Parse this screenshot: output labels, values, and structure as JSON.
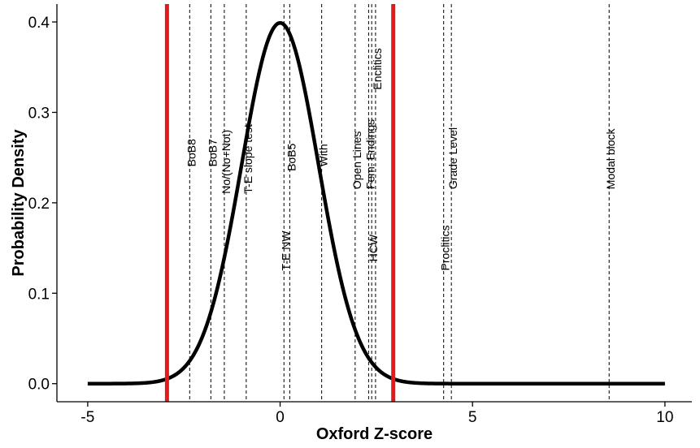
{
  "chart_data": {
    "type": "line",
    "xlabel": "Oxford Z-score",
    "ylabel": "Probability Density",
    "xlim": [
      -5,
      10
    ],
    "ylim": [
      0,
      0.4
    ],
    "x_ticks": [
      -5,
      0,
      5,
      10
    ],
    "x_tick_labels": [
      "-5",
      "0",
      "5",
      "10"
    ],
    "y_ticks": [
      0.0,
      0.1,
      0.2,
      0.3,
      0.4
    ],
    "y_tick_labels": [
      "0.0",
      "0.1",
      "0.2",
      "0.3",
      "0.4"
    ],
    "grid": false,
    "series": [
      {
        "distribution": "standard normal density",
        "mean": 0,
        "sd": 1,
        "x_range": [
          -5,
          10
        ],
        "color": "#000000"
      }
    ],
    "thresholds": [
      {
        "x": -2.94,
        "color": "#e31a1c"
      },
      {
        "x": 2.94,
        "color": "#e31a1c"
      }
    ],
    "reference_lines": [
      {
        "label": "BoB8",
        "x": -2.35,
        "label_y": 0.24
      },
      {
        "label": "BoB7",
        "x": -1.8,
        "label_y": 0.24
      },
      {
        "label": "No/(No+Not)",
        "x": -1.45,
        "label_y": 0.21
      },
      {
        "label": "T-E slope test",
        "x": -0.88,
        "label_y": 0.21
      },
      {
        "label": "T-E NW",
        "x": 0.1,
        "label_y": 0.125
      },
      {
        "label": "BoB5",
        "x": 0.25,
        "label_y": 0.235
      },
      {
        "label": "With",
        "x": 1.08,
        "label_y": 0.24
      },
      {
        "label": "Open Lines",
        "x": 1.95,
        "label_y": 0.215
      },
      {
        "label": "Fem. Endings",
        "x": 2.3,
        "label_y": 0.215
      },
      {
        "label": "HCW",
        "x": 2.38,
        "label_y": 0.135
      },
      {
        "label": "Enclitics",
        "x": 2.48,
        "label_y": 0.325
      },
      {
        "label": "Proclitics",
        "x": 4.25,
        "label_y": 0.125
      },
      {
        "label": "Grade Level",
        "x": 4.45,
        "label_y": 0.215
      },
      {
        "label": "Modal block",
        "x": 8.55,
        "label_y": 0.215
      }
    ]
  }
}
